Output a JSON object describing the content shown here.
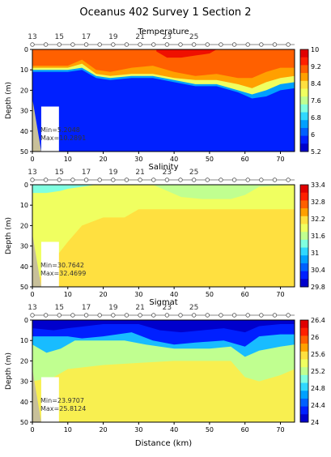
{
  "figure": {
    "title": "Oceanus 402 Survey 1 Section 2",
    "xlabel": "Distance (km)"
  },
  "colors": {
    "sand": "#c8c09a",
    "white_patch": "#ffffff",
    "station_marker": "#ffffff"
  },
  "chart_data": [
    {
      "type": "heatmap",
      "title": "Temperature",
      "ylabel": "Depth (m)",
      "xlim": [
        0,
        74
      ],
      "ylim": [
        50,
        0
      ],
      "x_ticks": [
        0,
        10,
        20,
        30,
        40,
        50,
        60,
        70
      ],
      "y_ticks": [
        0,
        10,
        20,
        30,
        40,
        50
      ],
      "stations": [
        "13",
        "15",
        "17",
        "19",
        "21",
        "23",
        "25"
      ],
      "station_x": [
        0,
        3.8,
        7.6,
        11.4,
        15.2,
        19,
        22.8,
        26.6,
        30.4,
        34.2,
        38,
        41.8,
        45.6,
        49.4,
        53.2,
        57,
        60.8,
        64.6,
        68.4,
        72.2
      ],
      "colorbar": {
        "ticks": [
          "10",
          "9.2",
          "8.4",
          "7.6",
          "6.8",
          "6",
          "5.2"
        ],
        "min": 5.2,
        "max": 10,
        "colors": [
          "#0000cc",
          "#0020ff",
          "#0060ff",
          "#00a0ff",
          "#30d8ff",
          "#80ffe0",
          "#c0ff90",
          "#f0ff60",
          "#ffe040",
          "#ffa000",
          "#ff6000",
          "#ff2000",
          "#e00000"
        ]
      },
      "annotation": [
        "Min=5.2048",
        "Max=10.2891"
      ],
      "contour_levels": [
        {
          "level": 8.8,
          "x": [
            0,
            10,
            14,
            18,
            22,
            28,
            34,
            40,
            46,
            52,
            58,
            62,
            66,
            70,
            74
          ],
          "y": [
            8,
            8,
            5,
            10,
            11,
            9,
            8,
            11,
            13,
            12,
            14,
            14,
            11,
            9,
            9
          ]
        },
        {
          "level": 8.0,
          "x": [
            0,
            10,
            14,
            18,
            22,
            28,
            34,
            40,
            46,
            52,
            58,
            62,
            66,
            70,
            74
          ],
          "y": [
            9,
            9,
            7,
            12,
            13,
            12,
            12,
            14,
            15,
            15,
            17,
            19,
            16,
            14,
            13
          ]
        },
        {
          "level": 6.4,
          "x": [
            0,
            10,
            14,
            18,
            22,
            28,
            34,
            40,
            46,
            52,
            58,
            62,
            66,
            70,
            74
          ],
          "y": [
            10,
            10,
            9,
            13,
            14,
            13,
            13,
            15,
            17,
            17,
            20,
            22,
            20,
            17,
            16
          ]
        },
        {
          "level": 5.6,
          "x": [
            0,
            10,
            14,
            18,
            22,
            28,
            34,
            40,
            46,
            52,
            58,
            62,
            66,
            70,
            74
          ],
          "y": [
            11,
            11,
            10,
            14,
            15,
            14,
            14,
            16,
            18,
            18,
            21,
            24,
            23,
            20,
            19
          ]
        }
      ],
      "surface_patches": [
        {
          "level": 9.2,
          "x": [
            28,
            32,
            36,
            40,
            44,
            48,
            52,
            56,
            60
          ],
          "y": [
            4,
            5,
            7,
            7,
            6,
            4,
            3,
            1,
            0
          ]
        },
        {
          "level": 9.8,
          "x": [
            35,
            38,
            42,
            46,
            50,
            52
          ],
          "y": [
            1,
            4,
            4,
            3,
            2,
            0
          ]
        }
      ]
    },
    {
      "type": "heatmap",
      "title": "Salinity",
      "ylabel": "Depth (m)",
      "xlim": [
        0,
        74
      ],
      "ylim": [
        50,
        0
      ],
      "x_ticks": [
        0,
        10,
        20,
        30,
        40,
        50,
        60,
        70
      ],
      "y_ticks": [
        0,
        10,
        20,
        30,
        40,
        50
      ],
      "stations": [
        "13",
        "15",
        "17",
        "19",
        "21",
        "23",
        "25"
      ],
      "station_x": [
        0,
        3.8,
        7.6,
        11.4,
        15.2,
        19,
        22.8,
        26.6,
        30.4,
        34.2,
        38,
        41.8,
        45.6,
        49.4,
        53.2,
        57,
        60.8,
        64.6,
        68.4,
        72.2
      ],
      "colorbar": {
        "ticks": [
          "33.4",
          "32.8",
          "32.2",
          "31.6",
          "31",
          "30.4",
          "29.8"
        ],
        "min": 29.8,
        "max": 33.4,
        "colors": [
          "#0000cc",
          "#0020ff",
          "#0060ff",
          "#00a0ff",
          "#30d8ff",
          "#80ffe0",
          "#c0ff90",
          "#f0ff60",
          "#ffe040",
          "#ffa000",
          "#ff6000",
          "#ff2000",
          "#e00000"
        ]
      },
      "annotation": [
        "Min=30.7642",
        "Max=32.4699"
      ],
      "fill_level": 31.9,
      "regions": [
        {
          "level": 31.6,
          "x": [
            0,
            2,
            10,
            14,
            20,
            28,
            34,
            38,
            42,
            48,
            56,
            60,
            64,
            74,
            74
          ],
          "y": [
            0,
            0,
            0,
            0,
            0,
            0,
            0,
            3,
            6,
            7,
            7,
            5,
            1,
            0,
            0
          ]
        },
        {
          "level": 31.3,
          "x": [
            0,
            4,
            8,
            10,
            14,
            18,
            22,
            28,
            34
          ],
          "y": [
            4,
            4,
            3,
            2,
            1,
            0,
            0,
            0,
            0
          ]
        }
      ],
      "dip_region": {
        "level": 32.2,
        "x": [
          0,
          10,
          14,
          20,
          26,
          30,
          40,
          60,
          74
        ],
        "y": [
          50,
          28,
          20,
          16,
          16,
          12,
          12,
          12,
          12
        ]
      }
    },
    {
      "type": "heatmap",
      "title": "Sigmat",
      "ylabel": "Depth (m)",
      "xlim": [
        0,
        74
      ],
      "ylim": [
        50,
        0
      ],
      "x_ticks": [
        0,
        10,
        20,
        30,
        40,
        50,
        60,
        70
      ],
      "y_ticks": [
        0,
        10,
        20,
        30,
        40,
        50
      ],
      "stations": [
        "13",
        "15",
        "17",
        "19",
        "21",
        "23",
        "25"
      ],
      "station_x": [
        0,
        3.8,
        7.6,
        11.4,
        15.2,
        19,
        22.8,
        26.6,
        30.4,
        34.2,
        38,
        41.8,
        45.6,
        49.4,
        53.2,
        57,
        60.8,
        64.6,
        68.4,
        72.2
      ],
      "colorbar": {
        "ticks": [
          "26.4",
          "26",
          "25.6",
          "25.2",
          "24.8",
          "24.4",
          "24"
        ],
        "min": 24,
        "max": 26.4,
        "colors": [
          "#0000cc",
          "#0020ff",
          "#0060ff",
          "#00a0ff",
          "#30d8ff",
          "#80ffe0",
          "#c0ff90",
          "#f0ff60",
          "#ffe040",
          "#ffa000",
          "#ff6000",
          "#ff2000",
          "#e00000"
        ]
      },
      "annotation": [
        "Min=23.9707",
        "Max=25.8124"
      ],
      "contour_levels": [
        {
          "level": 24.2,
          "x": [
            0,
            6,
            10,
            20,
            30,
            36,
            42,
            48,
            54,
            60,
            64,
            70,
            74
          ],
          "y": [
            4,
            5,
            4,
            2,
            2,
            5,
            6,
            5,
            4,
            6,
            3,
            2,
            2
          ]
        },
        {
          "level": 24.7,
          "x": [
            0,
            6,
            10,
            14,
            20,
            28,
            34,
            40,
            46,
            54,
            60,
            64,
            70,
            74
          ],
          "y": [
            8,
            8,
            8,
            9,
            8,
            6,
            10,
            12,
            11,
            10,
            13,
            8,
            7,
            7
          ]
        },
        {
          "level": 25.2,
          "x": [
            0,
            4,
            8,
            12,
            18,
            26,
            32,
            40,
            50,
            56,
            60,
            64,
            70,
            74
          ],
          "y": [
            12,
            16,
            14,
            10,
            10,
            10,
            12,
            14,
            14,
            13,
            18,
            15,
            13,
            12
          ]
        },
        {
          "level": 25.5,
          "x": [
            0,
            6,
            10,
            20,
            30,
            40,
            50,
            56,
            60,
            64,
            70,
            74
          ],
          "y": [
            30,
            28,
            24,
            22,
            21,
            20,
            20,
            20,
            28,
            30,
            27,
            24
          ]
        }
      ]
    }
  ]
}
